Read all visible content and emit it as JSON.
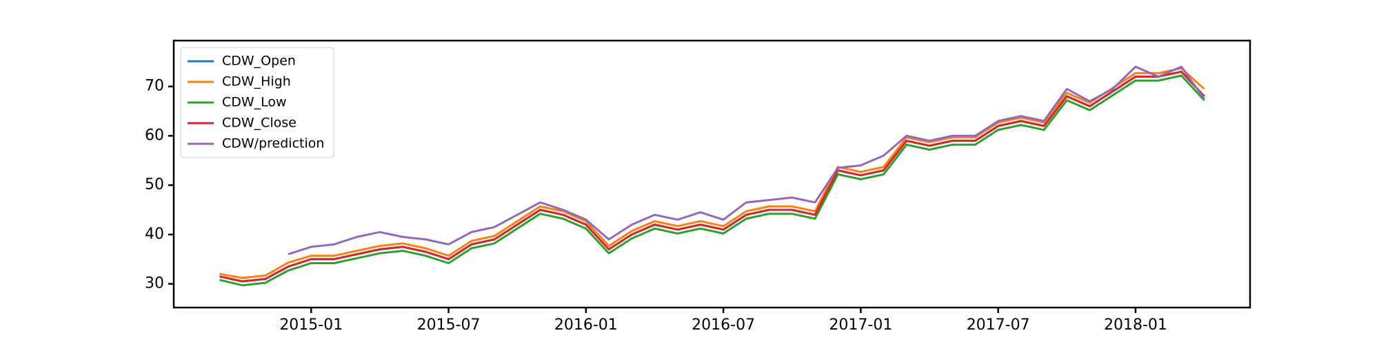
{
  "chart_data": {
    "type": "line",
    "x": [
      "2014-09",
      "2014-10",
      "2014-11",
      "2014-12",
      "2015-01",
      "2015-02",
      "2015-03",
      "2015-04",
      "2015-05",
      "2015-06",
      "2015-07",
      "2015-08",
      "2015-09",
      "2015-10",
      "2015-11",
      "2015-12",
      "2016-01",
      "2016-02",
      "2016-03",
      "2016-04",
      "2016-05",
      "2016-06",
      "2016-07",
      "2016-08",
      "2016-09",
      "2016-10",
      "2016-11",
      "2016-12",
      "2017-01",
      "2017-02",
      "2017-03",
      "2017-04",
      "2017-05",
      "2017-06",
      "2017-07",
      "2017-08",
      "2017-09",
      "2017-10",
      "2017-11",
      "2017-12",
      "2018-01",
      "2018-02",
      "2018-03",
      "2018-04"
    ],
    "series": [
      {
        "name": "CDW_Open",
        "color": "#1f77b4",
        "values": [
          31.5,
          30.5,
          31,
          33.5,
          35,
          35,
          36,
          37,
          37.5,
          36.5,
          35,
          38,
          39,
          42,
          45,
          44,
          42,
          37,
          40,
          42,
          41,
          42,
          41,
          44,
          45,
          45,
          44,
          53,
          52,
          53,
          59,
          58,
          59,
          59,
          62,
          63,
          62,
          68,
          66,
          69,
          72,
          72,
          73,
          68
        ]
      },
      {
        "name": "CDW_High",
        "color": "#ff7f0e",
        "values": [
          32,
          31.2,
          31.7,
          34.3,
          35.7,
          35.7,
          36.7,
          37.7,
          38.2,
          37.2,
          35.7,
          38.7,
          39.7,
          42.7,
          45.7,
          44.7,
          42.7,
          37.7,
          40.7,
          42.7,
          41.7,
          42.7,
          41.7,
          44.7,
          45.7,
          45.7,
          44.7,
          53.7,
          52.7,
          53.7,
          59.7,
          58.7,
          59.7,
          59.7,
          62.7,
          63.7,
          62.7,
          68.7,
          66.7,
          69.7,
          72.7,
          72.7,
          73.7,
          69.5
        ]
      },
      {
        "name": "CDW_Low",
        "color": "#2ca02c",
        "values": [
          30.8,
          29.7,
          30.2,
          32.7,
          34.2,
          34.2,
          35.2,
          36.2,
          36.7,
          35.7,
          34.2,
          37.2,
          38.2,
          41.2,
          44.2,
          43.2,
          41.2,
          36.2,
          39.2,
          41.2,
          40.2,
          41.2,
          40.2,
          43.2,
          44.2,
          44.2,
          43.2,
          52.2,
          51.2,
          52.2,
          58.2,
          57.2,
          58.2,
          58.2,
          61.2,
          62.2,
          61.2,
          67.2,
          65.2,
          68.2,
          71.2,
          71.2,
          72.2,
          67.2
        ]
      },
      {
        "name": "CDW_Close",
        "color": "#d62728",
        "values": [
          31.5,
          30.5,
          31,
          33.5,
          35,
          35,
          36,
          37,
          37.5,
          36.5,
          35,
          38,
          39,
          42,
          45,
          44,
          42,
          37,
          40,
          42,
          41,
          42,
          41,
          44,
          45,
          45,
          44,
          53,
          52,
          53,
          59,
          58,
          59,
          59,
          62,
          63,
          62,
          68,
          66,
          69,
          72,
          72,
          73,
          68
        ]
      },
      {
        "name": "CDW/prediction",
        "color": "#9467bd",
        "values": [
          null,
          null,
          null,
          36,
          37.5,
          38,
          39.5,
          40.5,
          39.5,
          39,
          38,
          40.5,
          41.5,
          44,
          46.5,
          45,
          43,
          39,
          42,
          44,
          43,
          44.5,
          43,
          46.5,
          47,
          47.5,
          46.5,
          53.5,
          54,
          56,
          60,
          59,
          60,
          60,
          63,
          64,
          63,
          69.5,
          67,
          69.5,
          74,
          72,
          74,
          67.5
        ]
      }
    ],
    "xlim": [
      "2014-07",
      "2018-06"
    ],
    "xticks": [
      "2015-01",
      "2015-07",
      "2016-01",
      "2016-07",
      "2017-01",
      "2017-07",
      "2018-01"
    ],
    "ylim": [
      25.2,
      79.3
    ],
    "yticks": [
      30,
      40,
      50,
      60,
      70
    ],
    "legend": "upper left"
  }
}
